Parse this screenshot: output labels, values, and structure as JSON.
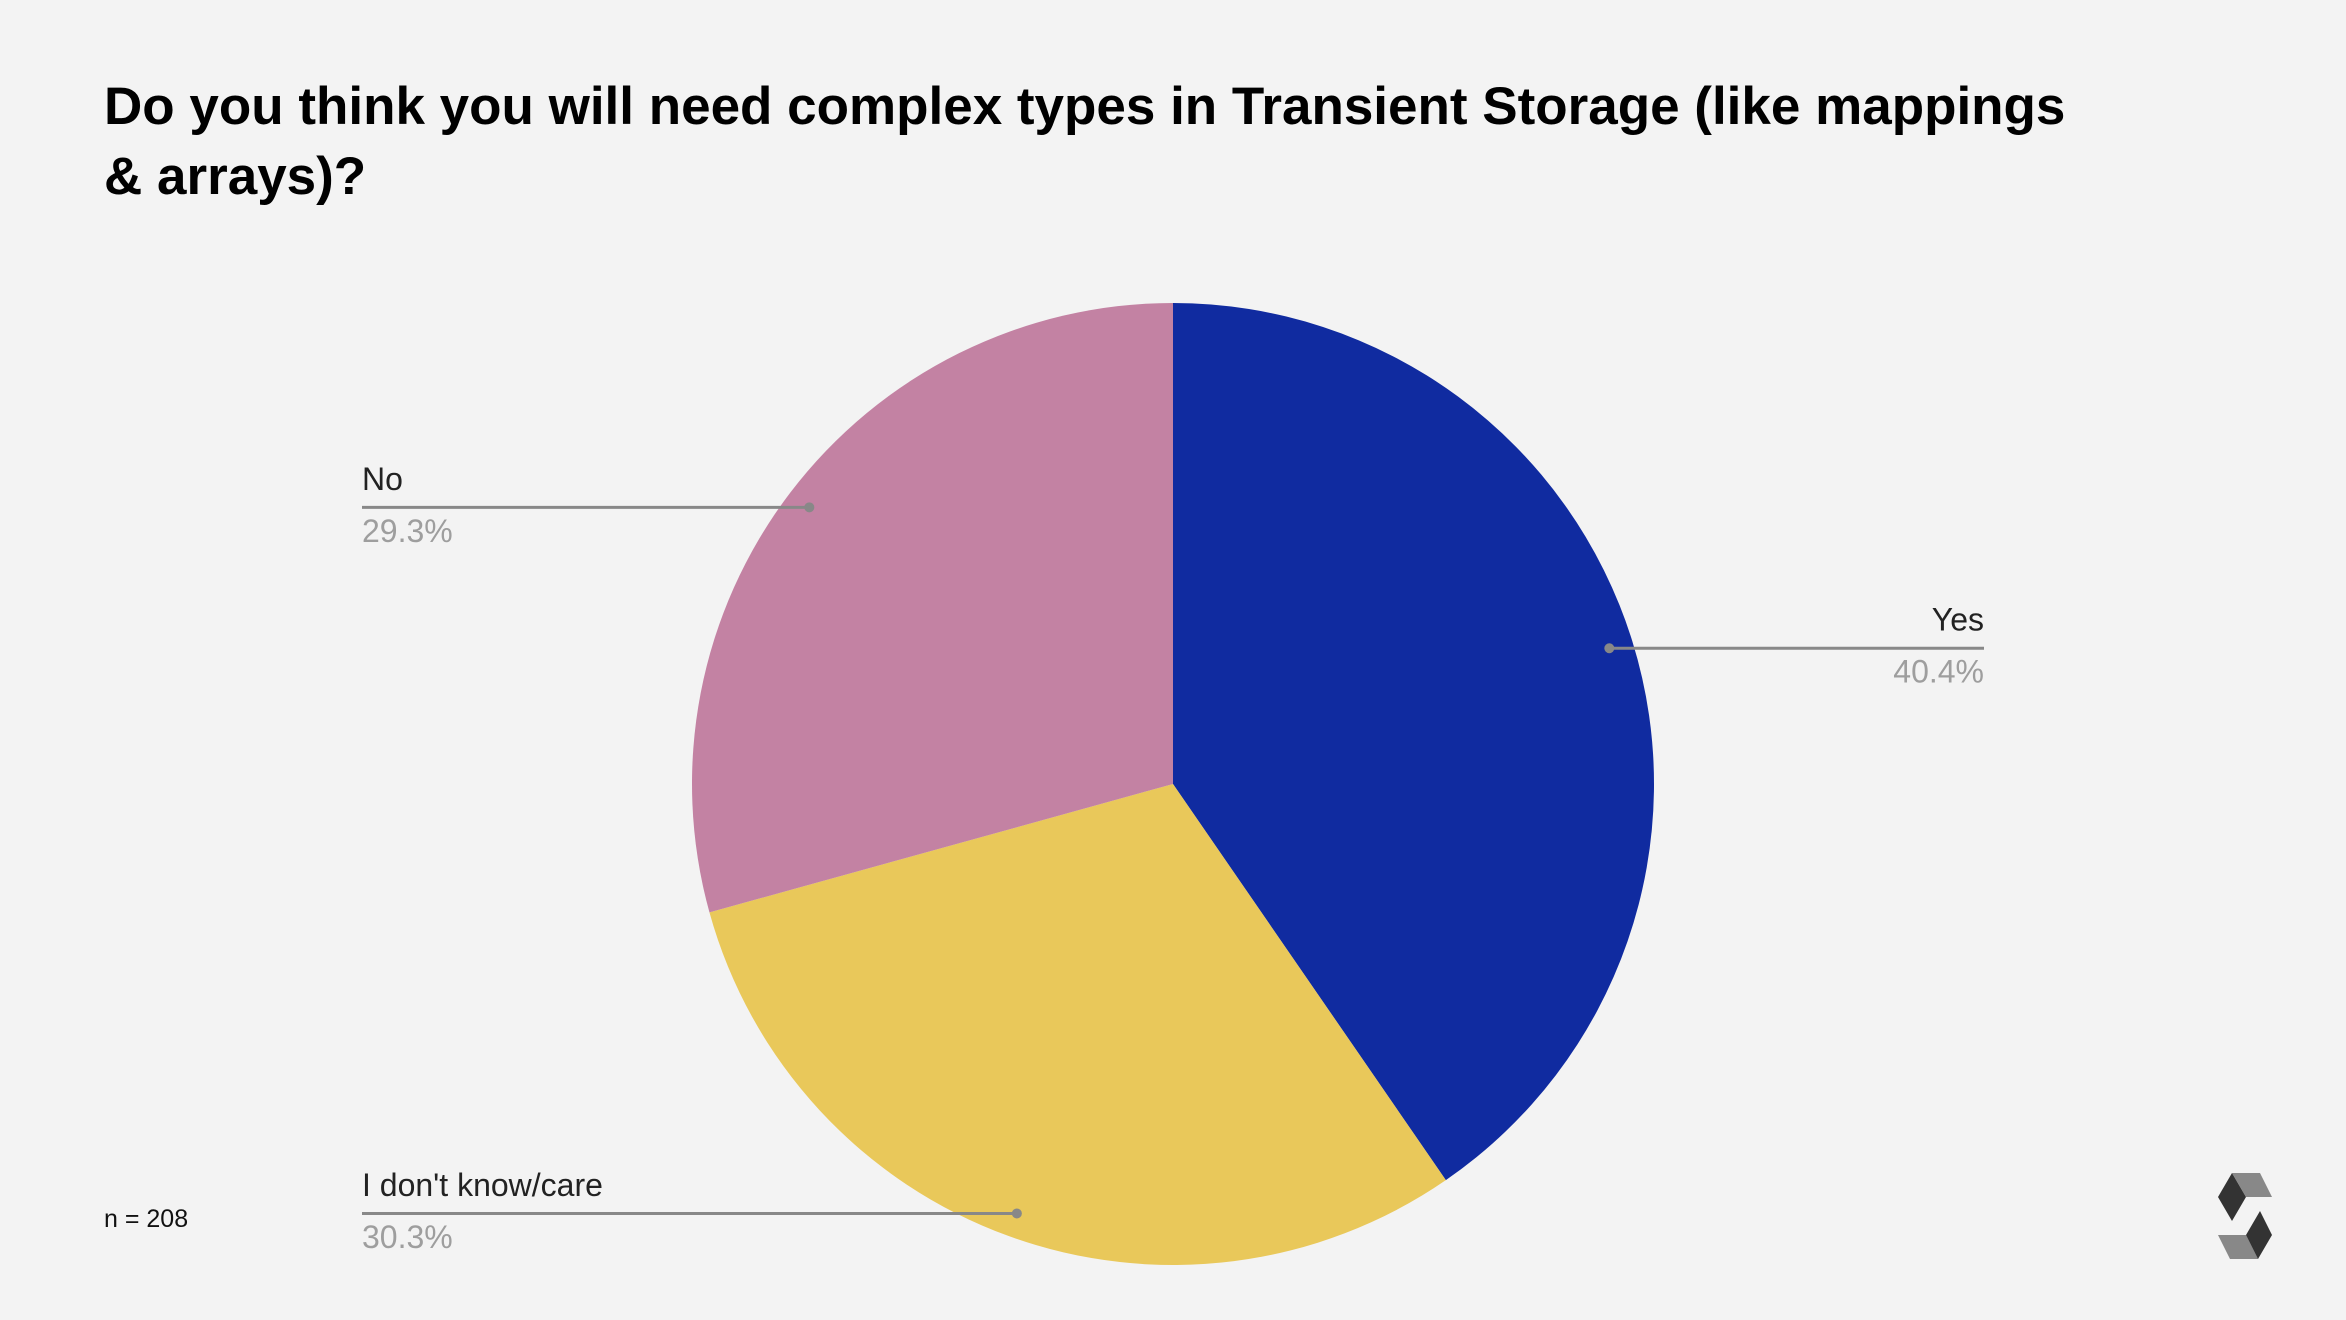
{
  "chart_data": {
    "type": "pie",
    "title": "Do you think you will need complex types in Transient Storage (like mappings & arrays)?",
    "annotation": "n = 208",
    "categories": [
      "Yes",
      "I don't know/care",
      "No"
    ],
    "values": [
      40.4,
      30.3,
      29.3
    ],
    "value_labels": [
      "40.4%",
      "30.3%",
      "29.3%"
    ],
    "colors": [
      "#102ba0",
      "#e9c85a",
      "#c382a3"
    ]
  }
}
